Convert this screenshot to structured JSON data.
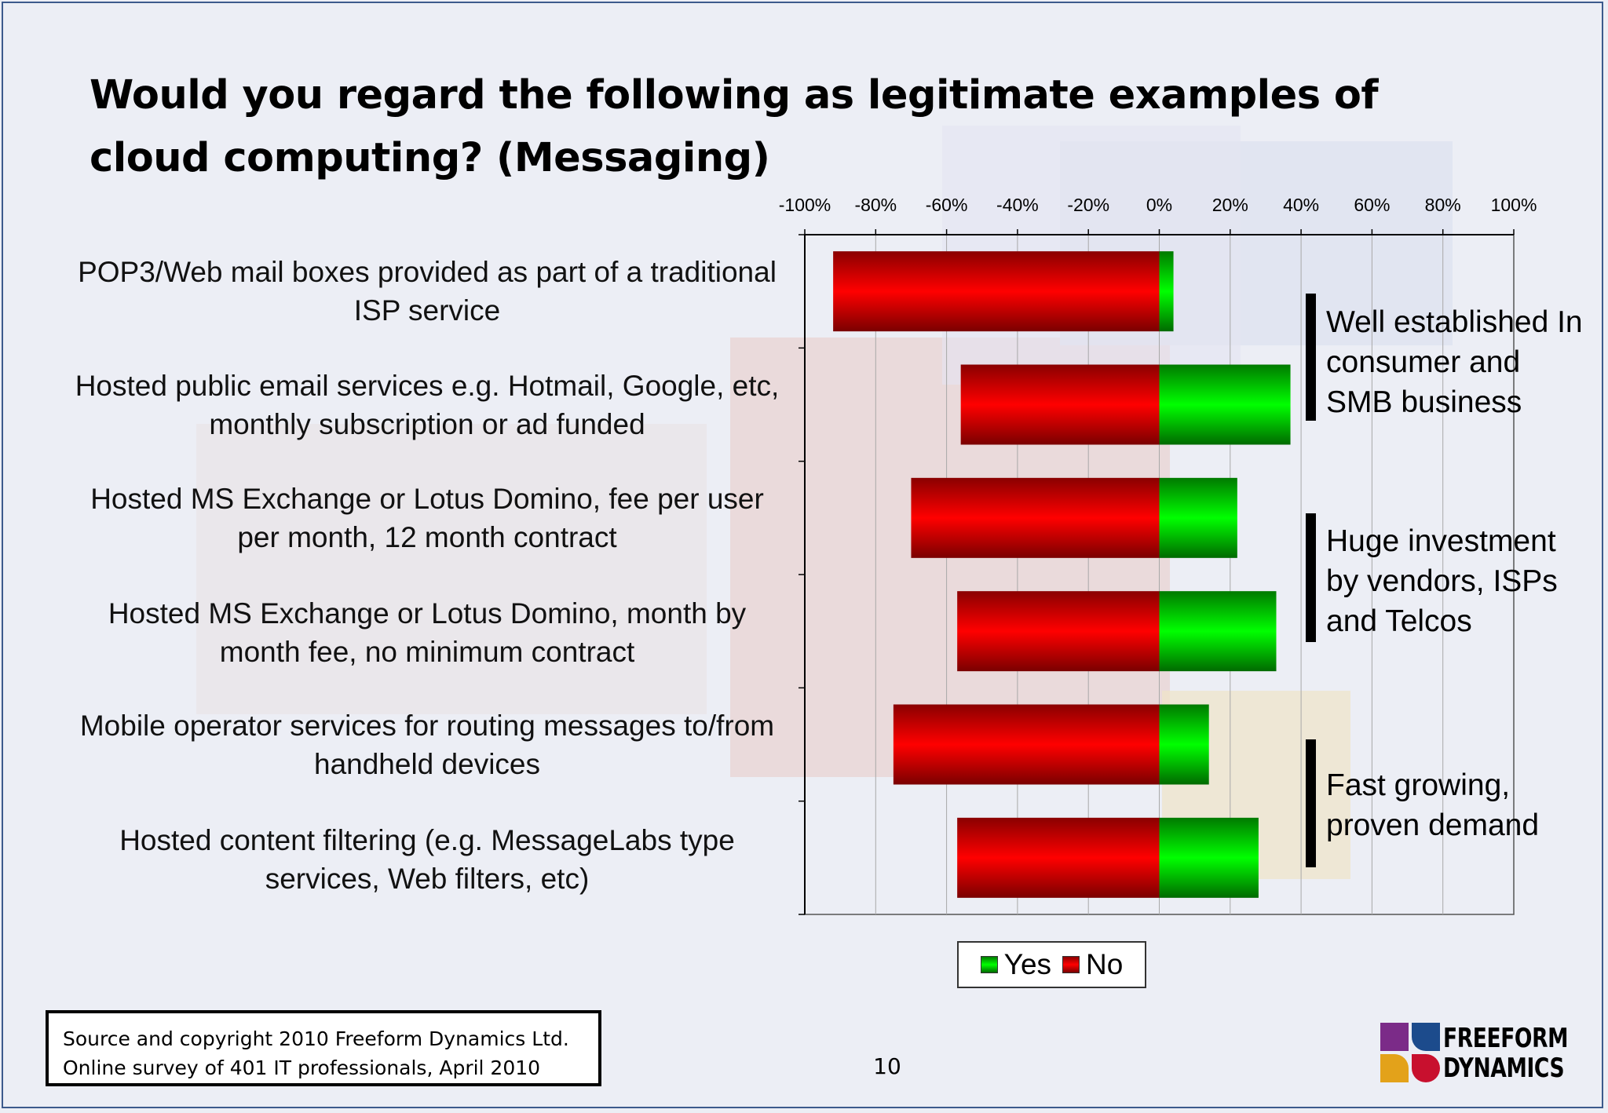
{
  "slide": {
    "title": "Would you regard the following as legitimate examples of cloud computing? (Messaging)",
    "page_number": "10"
  },
  "source_box": {
    "line1": "Source and copyright 2010 Freeform Dynamics Ltd.",
    "line2": "Online survey of 401 IT professionals, April 2010"
  },
  "logo": {
    "line1": "FREEFORM",
    "line2": "DYNAMICS",
    "colors": [
      "#7b2b88",
      "#1c4b8c",
      "#e3a21a",
      "#c8102e"
    ]
  },
  "annotations": [
    {
      "text": "Well established In consumer and SMB business"
    },
    {
      "text": "Huge investment by vendors, ISPs and Telcos"
    },
    {
      "text": "Fast growing, proven demand"
    }
  ],
  "chart_data": {
    "type": "bar",
    "orientation": "horizontal",
    "stacking": "diverging",
    "categories": [
      "POP3/Web mail boxes provided as part of a traditional ISP service",
      "Hosted public email services e.g. Hotmail, Google, etc, monthly subscription or ad funded",
      "Hosted MS Exchange or Lotus Domino, fee per user per month, 12 month contract",
      "Hosted MS Exchange or Lotus Domino, month by month fee, no minimum contract",
      "Mobile operator services for routing messages to/from handheld devices",
      "Hosted content filtering (e.g. MessageLabs type services, Web filters, etc)"
    ],
    "series": [
      {
        "name": "Yes",
        "values": [
          4,
          37,
          22,
          33,
          14,
          28
        ],
        "color": "#00cc00"
      },
      {
        "name": "No",
        "values": [
          -92,
          -56,
          -70,
          -57,
          -75,
          -57
        ],
        "color": "#e00000"
      }
    ],
    "xlim": [
      -100,
      100
    ],
    "x_ticks": [
      -100,
      -80,
      -60,
      -40,
      -20,
      0,
      20,
      40,
      60,
      80,
      100
    ],
    "x_tick_labels": [
      "-100%",
      "-80%",
      "-60%",
      "-40%",
      "-20%",
      "0%",
      "20%",
      "40%",
      "60%",
      "80%",
      "100%"
    ],
    "x_axis_position": "top",
    "grid": "vertical",
    "legend_position": "bottom"
  }
}
